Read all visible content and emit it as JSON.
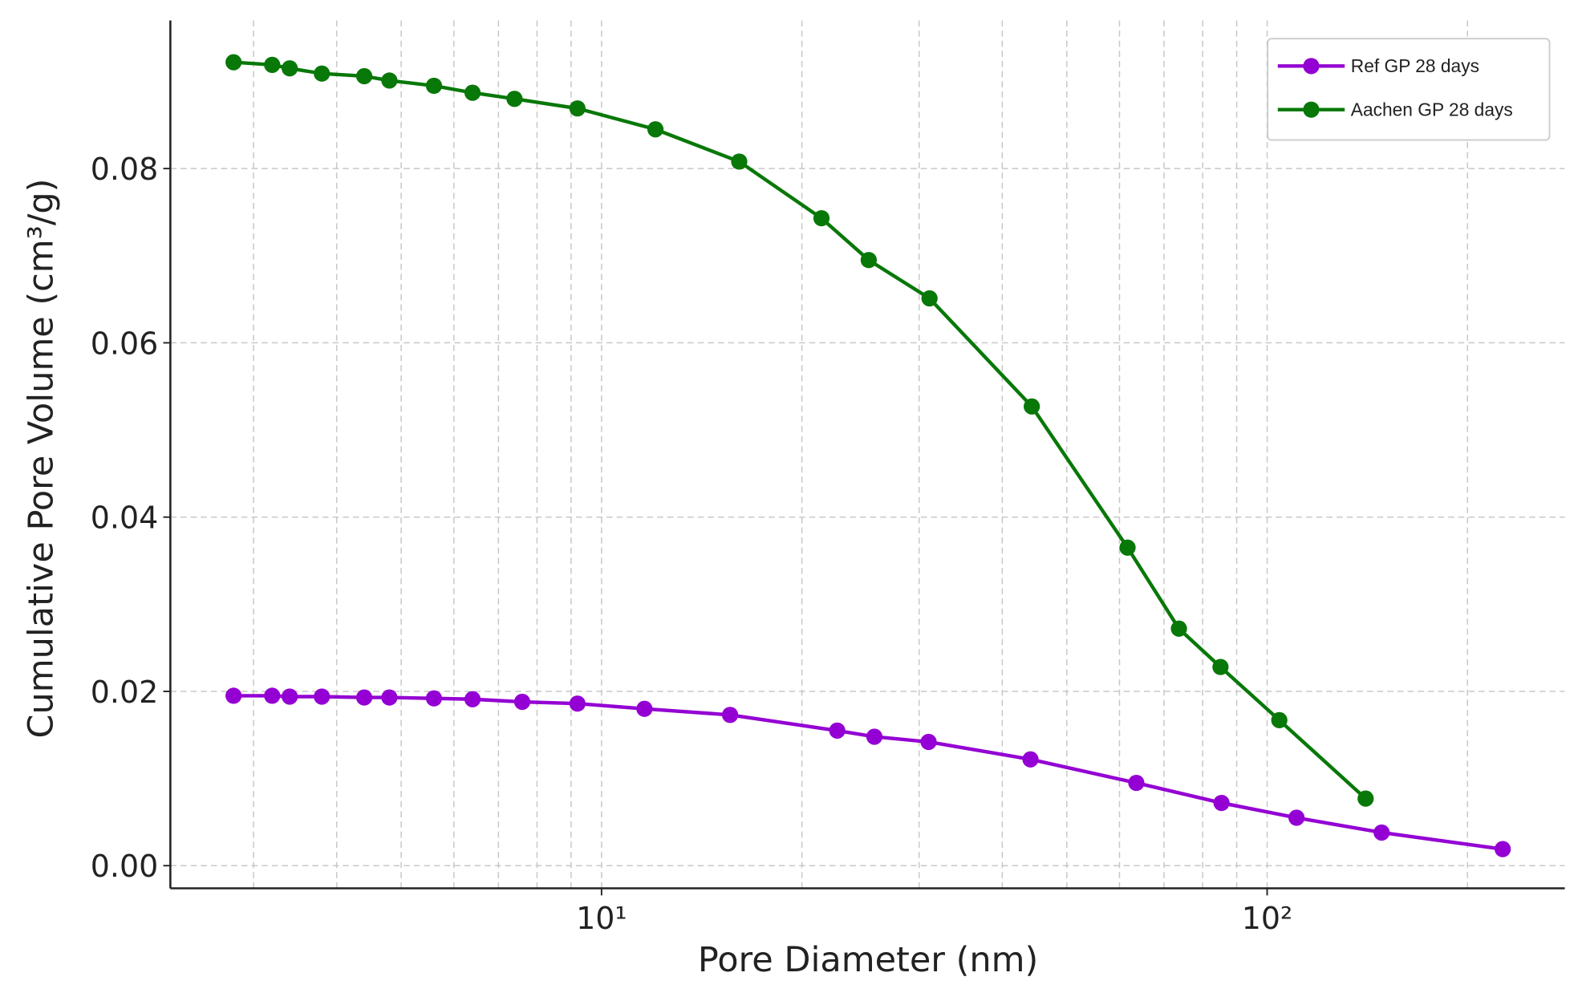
{
  "chart_data": {
    "type": "line",
    "x_label": "Pore Diameter (nm)",
    "y_label": "Cumulative Pore Volume (cm³/g)",
    "xscale": "log",
    "xlim": [
      2.25,
      280
    ],
    "ylim": [
      -0.0026,
      0.097
    ],
    "xticks": [
      {
        "value": 10,
        "label": "10¹"
      },
      {
        "value": 100,
        "label": "10²"
      }
    ],
    "xminorticks": [
      3,
      4,
      5,
      6,
      7,
      8,
      9,
      20,
      30,
      40,
      50,
      60,
      70,
      80,
      90,
      200
    ],
    "yticks": [
      {
        "value": 0,
        "label": "0.00"
      },
      {
        "value": 0.02,
        "label": "0.02"
      },
      {
        "value": 0.04,
        "label": "0.04"
      },
      {
        "value": 0.06,
        "label": "0.06"
      },
      {
        "value": 0.08,
        "label": "0.08"
      }
    ],
    "grid": true,
    "legend": "upper right",
    "series": [
      {
        "name": "Ref GP 28 days",
        "color": "#9400d3",
        "x": [
          2.8,
          3.2,
          3.4,
          3.8,
          4.4,
          4.8,
          5.6,
          6.4,
          7.6,
          9.2,
          11.6,
          15.6,
          22.6,
          25.7,
          31,
          44.1,
          63.6,
          85.4,
          110.7,
          148.6,
          225.9
        ],
        "values": [
          0.0195,
          0.0195,
          0.0194,
          0.0194,
          0.0193,
          0.0193,
          0.0192,
          0.0191,
          0.0188,
          0.0186,
          0.018,
          0.0173,
          0.0155,
          0.0148,
          0.0142,
          0.0122,
          0.0095,
          0.0072,
          0.0055,
          0.0038,
          0.0019
        ]
      },
      {
        "name": "Aachen GP 28 days",
        "color": "#087808",
        "x": [
          2.8,
          3.2,
          3.4,
          3.8,
          4.4,
          4.8,
          5.6,
          6.4,
          7.4,
          9.2,
          12.05,
          16.1,
          21.4,
          25.2,
          31.1,
          44.3,
          61.7,
          73.7,
          85.1,
          104.3,
          140.6
        ],
        "values": [
          0.0922,
          0.0919,
          0.0915,
          0.0909,
          0.0906,
          0.0901,
          0.0895,
          0.0887,
          0.088,
          0.0869,
          0.0845,
          0.0808,
          0.0743,
          0.0695,
          0.0651,
          0.0527,
          0.0365,
          0.0272,
          0.0228,
          0.0167,
          0.0077
        ]
      }
    ]
  }
}
